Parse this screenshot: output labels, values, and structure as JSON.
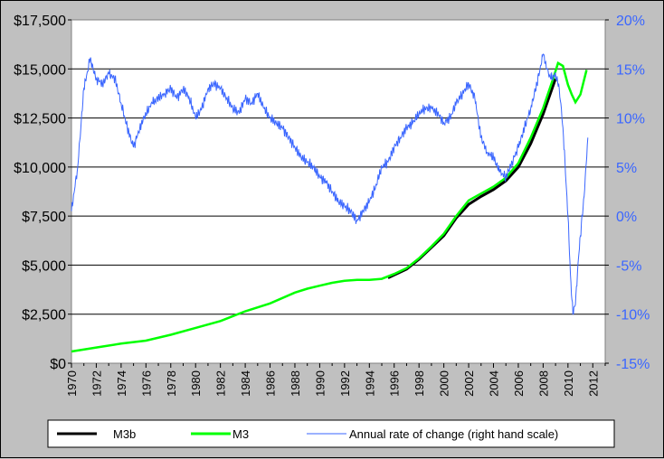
{
  "chart_data": {
    "type": "line",
    "title": "",
    "xlabel": "",
    "ylabel": "",
    "xlim": [
      1970,
      2013
    ],
    "ylim": [
      0,
      17500
    ],
    "y2lim": [
      -15,
      20
    ],
    "x_ticks": [
      "1970",
      "1972",
      "1974",
      "1976",
      "1978",
      "1980",
      "1982",
      "1984",
      "1986",
      "1988",
      "1990",
      "1992",
      "1994",
      "1996",
      "1998",
      "2000",
      "2002",
      "2004",
      "2006",
      "2008",
      "2010",
      "2012"
    ],
    "y_ticks_left": [
      "$0",
      "$2,500",
      "$5,000",
      "$7,500",
      "$10,000",
      "$12,500",
      "$15,000",
      "$17,500"
    ],
    "y_ticks_right": [
      "-15%",
      "-10%",
      "-5%",
      "0%",
      "5%",
      "10%",
      "15%",
      "20%"
    ],
    "grid": "horizontal",
    "legend_placement": "bottom",
    "colors": {
      "m3b": "#000000",
      "m3": "#00ff00",
      "rate": "#3a66ff",
      "right_axis_text": "#3a66ff",
      "plot_background": "#ffffff",
      "frame_background": "#c0c0c0"
    },
    "series": [
      {
        "name": "M3b",
        "axis": "left",
        "x": [
          1995.5,
          1997,
          1998,
          1999,
          2000,
          2001,
          2002,
          2003,
          2004,
          2005,
          2006,
          2007,
          2008,
          2009
        ],
        "y": [
          4350,
          4800,
          5300,
          5900,
          6500,
          7400,
          8100,
          8500,
          8850,
          9300,
          10000,
          11200,
          12700,
          14500
        ]
      },
      {
        "name": "M3",
        "axis": "left",
        "x": [
          1970,
          1972,
          1974,
          1976,
          1978,
          1980,
          1982,
          1984,
          1986,
          1988,
          1989,
          1990,
          1991,
          1992,
          1993,
          1994,
          1995,
          1996,
          1997,
          1998,
          1999,
          2000,
          2001,
          2002,
          2003,
          2004,
          2005,
          2006,
          2007,
          2008,
          2008.8,
          2009.2,
          2009.6,
          2010,
          2010.3,
          2010.6,
          2011,
          2011.5
        ],
        "y": [
          600,
          800,
          1000,
          1150,
          1450,
          1800,
          2150,
          2650,
          3050,
          3600,
          3800,
          3950,
          4100,
          4200,
          4250,
          4250,
          4300,
          4550,
          4850,
          5350,
          5950,
          6600,
          7500,
          8300,
          8650,
          9000,
          9450,
          10200,
          11500,
          13000,
          14500,
          15300,
          15150,
          14200,
          13700,
          13300,
          13700,
          14950
        ]
      },
      {
        "name": "Annual rate of change (right hand scale)",
        "axis": "right",
        "x": [
          1970,
          1970.5,
          1971,
          1971.5,
          1972,
          1972.5,
          1973,
          1973.5,
          1974,
          1974.5,
          1975,
          1975.5,
          1976,
          1976.5,
          1977,
          1977.5,
          1978,
          1978.5,
          1979,
          1979.5,
          1980,
          1980.5,
          1981,
          1981.5,
          1982,
          1982.5,
          1983,
          1983.5,
          1984,
          1984.5,
          1985,
          1985.5,
          1986,
          1986.5,
          1987,
          1987.5,
          1988,
          1988.5,
          1989,
          1989.5,
          1990,
          1990.5,
          1991,
          1991.5,
          1992,
          1992.5,
          1993,
          1993.5,
          1994,
          1994.5,
          1995,
          1995.5,
          1996,
          1996.5,
          1997,
          1997.5,
          1998,
          1998.5,
          1999,
          1999.5,
          2000,
          2000.5,
          2001,
          2001.5,
          2002,
          2002.5,
          2003,
          2003.5,
          2004,
          2004.5,
          2005,
          2005.5,
          2006,
          2006.5,
          2007,
          2007.5,
          2008,
          2008.3,
          2008.6,
          2009,
          2009.3,
          2009.6,
          2010,
          2010.2,
          2010.4,
          2010.6,
          2010.8,
          2011,
          2011.3,
          2011.6
        ],
        "y": [
          0.5,
          5,
          13,
          16,
          14,
          13.5,
          14.5,
          14,
          11.5,
          9,
          7,
          9,
          10.5,
          11.5,
          12,
          12.5,
          13,
          12,
          13,
          12,
          10,
          11,
          13,
          13.5,
          13,
          12,
          11,
          10.5,
          12,
          11.5,
          12.5,
          11,
          10,
          9.5,
          9,
          8,
          7,
          6,
          5.5,
          5,
          4,
          3.5,
          2.5,
          1.5,
          1,
          0.5,
          -0.5,
          0.5,
          1.5,
          3,
          5,
          5.5,
          7,
          8,
          9,
          9.5,
          10.5,
          11,
          11,
          10.5,
          9.5,
          10,
          11.5,
          12.5,
          13.5,
          12,
          8,
          6.5,
          6,
          4.5,
          4,
          5.5,
          7,
          9,
          11,
          13.5,
          16.5,
          15,
          14,
          14.5,
          13,
          9,
          0,
          -6,
          -10,
          -9,
          -5,
          -2,
          2,
          8
        ]
      }
    ]
  }
}
